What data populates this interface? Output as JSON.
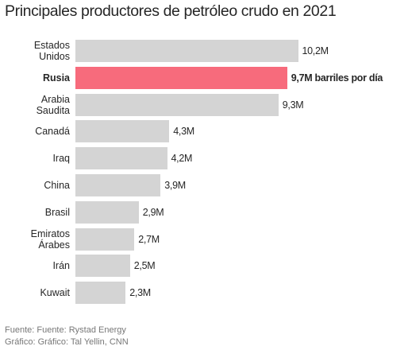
{
  "chart_data": {
    "type": "bar",
    "title": "Principales productores de petróleo crudo en 2021",
    "categories": [
      "Estados Unidos",
      "Rusia",
      "Arabia Saudita",
      "Canadá",
      "Iraq",
      "China",
      "Brasil",
      "Emiratos Árabes",
      "Irán",
      "Kuwait"
    ],
    "values": [
      10.2,
      9.7,
      9.3,
      4.3,
      4.2,
      3.9,
      2.9,
      2.7,
      2.5,
      2.3
    ],
    "value_labels": [
      "10,2M",
      "9,7M barriles por día",
      "9,3M",
      "4,3M",
      "4,2M",
      "3,9M",
      "2,9M",
      "2,7M",
      "2,5M",
      "2,3M"
    ],
    "colors": [
      "#d4d4d4",
      "#f76b7c",
      "#d4d4d4",
      "#d4d4d4",
      "#d4d4d4",
      "#d4d4d4",
      "#d4d4d4",
      "#d4d4d4",
      "#d4d4d4",
      "#d4d4d4"
    ],
    "source": "Fuente: Fuente: Rystad Energy",
    "credit": "Gráfico: Gráfico: Tal Yellin, CNN"
  }
}
